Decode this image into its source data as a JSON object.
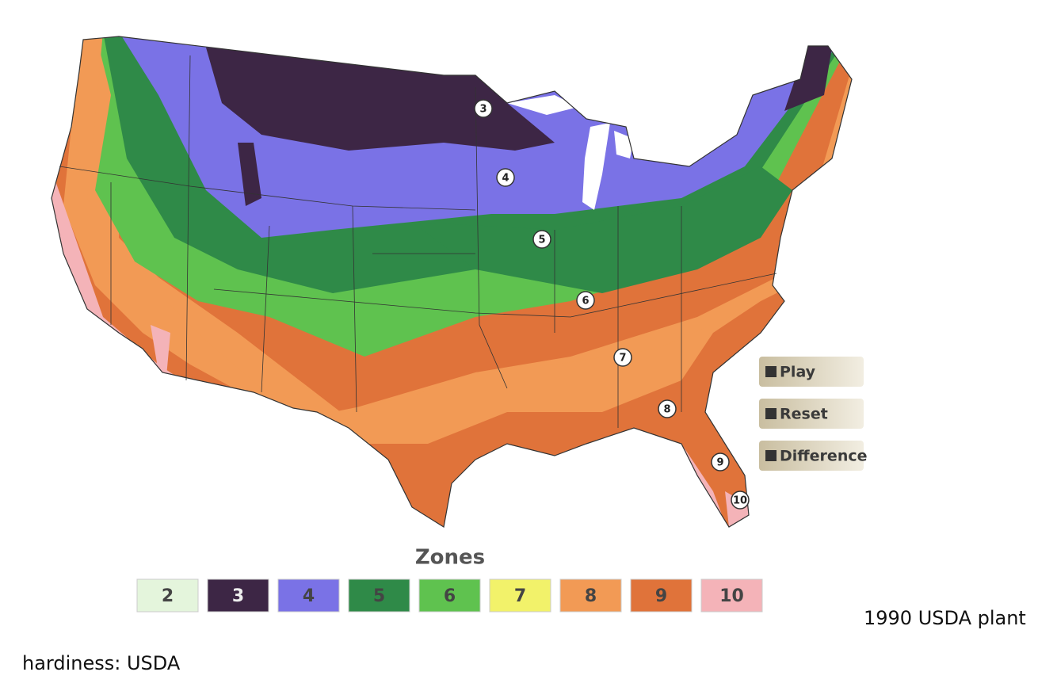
{
  "map": {
    "zone_markers": [
      {
        "label": "3"
      },
      {
        "label": "4"
      },
      {
        "label": "5"
      },
      {
        "label": "6"
      },
      {
        "label": "7"
      },
      {
        "label": "8"
      },
      {
        "label": "9"
      },
      {
        "label": "10"
      }
    ]
  },
  "controls": {
    "buttons": [
      "Play",
      "Reset",
      "Difference"
    ]
  },
  "legend": {
    "title": "Zones",
    "zones": [
      {
        "label": "2",
        "color": "#e4f5dc"
      },
      {
        "label": "3",
        "color": "#3d2645"
      },
      {
        "label": "4",
        "color": "#7a72e6"
      },
      {
        "label": "5",
        "color": "#2f8a48"
      },
      {
        "label": "6",
        "color": "#5fc24f"
      },
      {
        "label": "7",
        "color": "#f2f26a"
      },
      {
        "label": "8",
        "color": "#f29a55"
      },
      {
        "label": "9",
        "color": "#e0733a"
      },
      {
        "label": "10",
        "color": "#f4b3b8"
      }
    ]
  },
  "caption": [
    "1990 USDA plant",
    "hardiness: USDA"
  ]
}
